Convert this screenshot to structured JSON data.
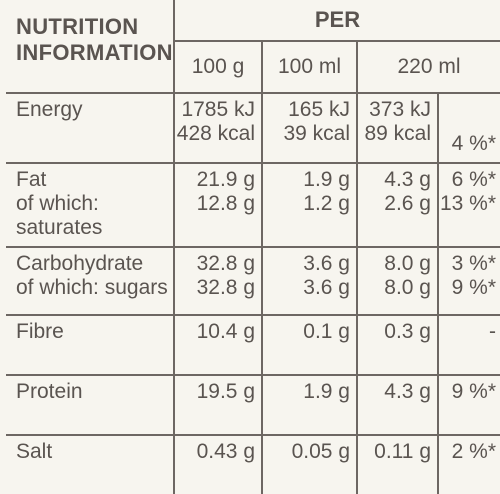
{
  "header": {
    "title_line1": "NUTRITION",
    "title_line2": "INFORMATION",
    "per_label": "PER",
    "columns": [
      "100 g",
      "100 ml",
      "220 ml"
    ]
  },
  "rows": [
    {
      "label1": "Energy",
      "label2": "",
      "c100g1": "1785 kJ",
      "c100g2": "428 kcal",
      "c100ml1": "165 kJ",
      "c100ml2": "39 kcal",
      "c220ml1": "373 kJ",
      "c220ml2": "89 kcal",
      "pct1": "",
      "pct2": "4 %*"
    },
    {
      "label1": "Fat",
      "label2": "of which: saturates",
      "c100g1": "21.9 g",
      "c100g2": "12.8 g",
      "c100ml1": "1.9 g",
      "c100ml2": "1.2 g",
      "c220ml1": "4.3 g",
      "c220ml2": "2.6 g",
      "pct1": "6 %*",
      "pct2": "13 %*"
    },
    {
      "label1": "Carbohydrate",
      "label2": "of which: sugars",
      "c100g1": "32.8 g",
      "c100g2": "32.8 g",
      "c100ml1": "3.6 g",
      "c100ml2": "3.6 g",
      "c220ml1": "8.0 g",
      "c220ml2": "8.0 g",
      "pct1": "3 %*",
      "pct2": "9 %*"
    },
    {
      "label1": "Fibre",
      "label2": "",
      "c100g1": "10.4 g",
      "c100g2": "",
      "c100ml1": "0.1 g",
      "c100ml2": "",
      "c220ml1": "0.3 g",
      "c220ml2": "",
      "pct1": "-",
      "pct2": ""
    },
    {
      "label1": "Protein",
      "label2": "",
      "c100g1": "19.5 g",
      "c100g2": "",
      "c100ml1": "1.9 g",
      "c100ml2": "",
      "c220ml1": "4.3 g",
      "c220ml2": "",
      "pct1": "9 %*",
      "pct2": ""
    },
    {
      "label1": "Salt",
      "label2": "",
      "c100g1": "0.43 g",
      "c100g2": "",
      "c100ml1": "0.05 g",
      "c100ml2": "",
      "c220ml1": "0.11 g",
      "c220ml2": "",
      "pct1": "2 %*",
      "pct2": ""
    }
  ]
}
